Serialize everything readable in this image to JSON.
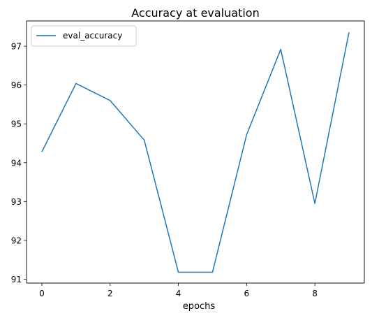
{
  "chart_data": {
    "type": "line",
    "title": "Accuracy at evaluation",
    "xlabel": "epochs",
    "ylabel": "",
    "xlim": [
      -0.45,
      9.45
    ],
    "ylim": [
      90.9,
      97.65
    ],
    "xticks": [
      0,
      2,
      4,
      6,
      8
    ],
    "yticks": [
      91,
      92,
      93,
      94,
      95,
      96,
      97
    ],
    "grid": false,
    "legend_position": "top-left",
    "series": [
      {
        "name": "eval_accuracy",
        "color": "#1f77b4",
        "x": [
          0,
          1,
          2,
          3,
          4,
          5,
          6,
          7,
          8,
          9
        ],
        "y": [
          94.28,
          96.04,
          95.6,
          94.58,
          91.18,
          91.18,
          94.72,
          96.92,
          92.95,
          97.36
        ]
      }
    ]
  }
}
